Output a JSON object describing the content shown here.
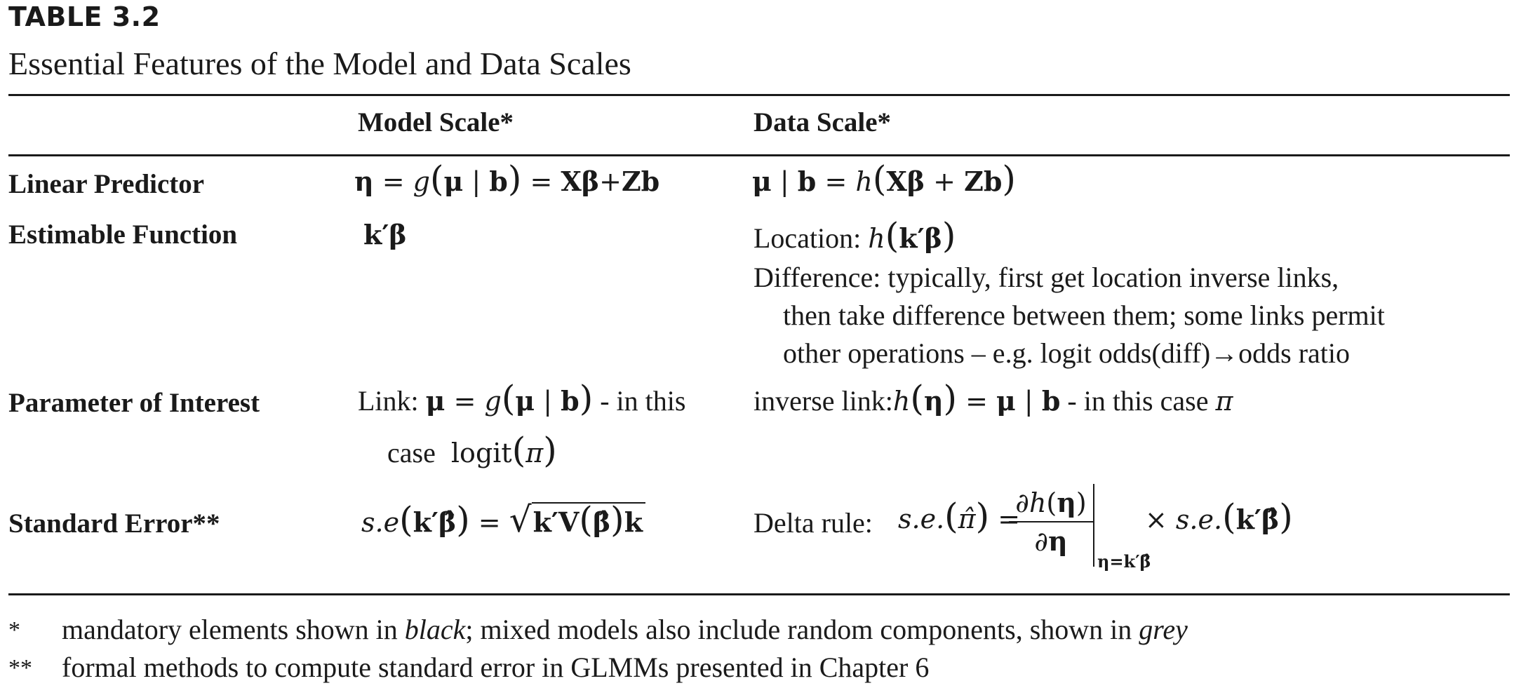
{
  "table": {
    "label": "TABLE 3.2",
    "caption": "Essential Features of the Model and Data Scales",
    "columns": [
      "Model Scale*",
      "Data Scale*"
    ],
    "rows": [
      {
        "label": "Linear Predictor",
        "model": "η = g(μ | b) = Xβ+Zb",
        "data": "μ | b = h(Xβ + Zb)"
      },
      {
        "label": "Estimable Function",
        "model": "k′β",
        "data_location_prefix": "Location:",
        "data_location_expr": "h(k′β)",
        "data_difference": [
          "Difference: typically, first get location inverse links,",
          "then take difference between them; some links permit",
          "other operations – e.g. logit odds(diff)→odds ratio"
        ]
      },
      {
        "label": "Parameter of Interest",
        "model_prefix": "Link:",
        "model_expr": "μ = g(μ | b)",
        "model_suffix": "- in this",
        "model_line2_prefix": "case",
        "model_line2_expr": "logit(π)",
        "data_prefix": "inverse link:",
        "data_expr": "h(η) = μ | b",
        "data_suffix": "- in this case",
        "data_pi": "π"
      },
      {
        "label": "Standard Error**",
        "model": "s.e(k′β̂) = √(k′V(β̂)k)",
        "data_prefix": "Delta rule:",
        "data_expr": "s.e.(π̂) = ∂h(η)/∂η |η=k′β̂ × s.e.(k′β̂)"
      }
    ],
    "footnotes": [
      {
        "mark": "*",
        "text_before": "mandatory elements shown in ",
        "italic1": "black",
        "text_mid": "; mixed models also include random components, shown in ",
        "italic2": "grey"
      },
      {
        "mark": "**",
        "text": "formal methods to compute standard error in GLMMs presented in Chapter 6"
      }
    ]
  }
}
